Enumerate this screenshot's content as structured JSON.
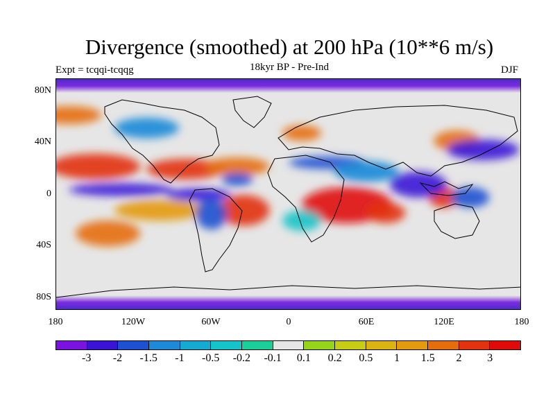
{
  "title": "Divergence (smoothed) at 200 hPa (10**6 m/s)",
  "subtitle_left": "Expt = tcqqi-tcqqg",
  "subtitle_center": "18kyr BP - Pre-Ind",
  "subtitle_right": "DJF",
  "y_tick_labels": [
    "80N",
    "40N",
    "0",
    "40S",
    "80S"
  ],
  "x_tick_labels": [
    "180",
    "120W",
    "60W",
    "0",
    "60E",
    "120E",
    "180"
  ],
  "colorbar": {
    "colors": [
      "#7a12e0",
      "#3a14d6",
      "#1c52d2",
      "#1b8ad8",
      "#15aad2",
      "#14c4c8",
      "#1bcf9a",
      "#e6e6e6",
      "#96d419",
      "#c7cc15",
      "#dcb411",
      "#e39a0f",
      "#e56e0b",
      "#e2320e",
      "#e00a0a"
    ],
    "labels": [
      "-3",
      "-2",
      "-1.5",
      "-1",
      "-0.5",
      "-0.2",
      "-0.1",
      "0.1",
      "0.2",
      "0.5",
      "1",
      "1.5",
      "2",
      "3"
    ]
  },
  "map_data": {
    "projection": "cylindrical-equidistant",
    "lon_range": [
      -180,
      180
    ],
    "lat_range": [
      -90,
      90
    ],
    "field": "200 hPa divergence difference (smoothed)",
    "anomaly_regions": [
      {
        "lon": -170,
        "lat": 62,
        "rx": 25,
        "ry": 7,
        "value": 1.5
      },
      {
        "lon": -150,
        "lat": 22,
        "rx": 35,
        "ry": 10,
        "value": 2
      },
      {
        "lon": -80,
        "lat": 20,
        "rx": 30,
        "ry": 8,
        "value": 2.5
      },
      {
        "lon": -40,
        "lat": 22,
        "rx": 25,
        "ry": 7,
        "value": 1.5
      },
      {
        "lon": -140,
        "lat": -30,
        "rx": 25,
        "ry": 10,
        "value": 1.5
      },
      {
        "lon": -100,
        "lat": -12,
        "rx": 35,
        "ry": 8,
        "value": 1
      },
      {
        "lon": -35,
        "lat": -12,
        "rx": 20,
        "ry": 12,
        "value": 2
      },
      {
        "lon": 45,
        "lat": -8,
        "rx": 35,
        "ry": 14,
        "value": 3
      },
      {
        "lon": 75,
        "lat": -14,
        "rx": 15,
        "ry": 8,
        "value": 2
      },
      {
        "lon": 130,
        "lat": 42,
        "rx": 18,
        "ry": 8,
        "value": 1.5
      },
      {
        "lon": 120,
        "lat": -2,
        "rx": 12,
        "ry": 8,
        "value": 2.5
      },
      {
        "lon": 10,
        "lat": 48,
        "rx": 15,
        "ry": 6,
        "value": 1.5
      },
      {
        "lon": -130,
        "lat": 4,
        "rx": 40,
        "ry": 5,
        "value": -3
      },
      {
        "lon": -70,
        "lat": 0,
        "rx": 25,
        "ry": 5,
        "value": -3
      },
      {
        "lon": -60,
        "lat": -15,
        "rx": 12,
        "ry": 12,
        "value": -2
      },
      {
        "lon": -110,
        "lat": 52,
        "rx": 25,
        "ry": 8,
        "value": -1.5
      },
      {
        "lon": -40,
        "lat": 12,
        "rx": 12,
        "ry": 5,
        "value": -2
      },
      {
        "lon": 30,
        "lat": 25,
        "rx": 30,
        "ry": 5,
        "value": -2
      },
      {
        "lon": 60,
        "lat": 18,
        "rx": 25,
        "ry": 8,
        "value": -1.5
      },
      {
        "lon": 100,
        "lat": 8,
        "rx": 22,
        "ry": 10,
        "value": -3
      },
      {
        "lon": 150,
        "lat": 35,
        "rx": 28,
        "ry": 8,
        "value": -3
      },
      {
        "lon": 140,
        "lat": -2,
        "rx": 15,
        "ry": 8,
        "value": -2
      },
      {
        "lon": 10,
        "lat": -20,
        "rx": 15,
        "ry": 8,
        "value": -0.5
      }
    ]
  }
}
